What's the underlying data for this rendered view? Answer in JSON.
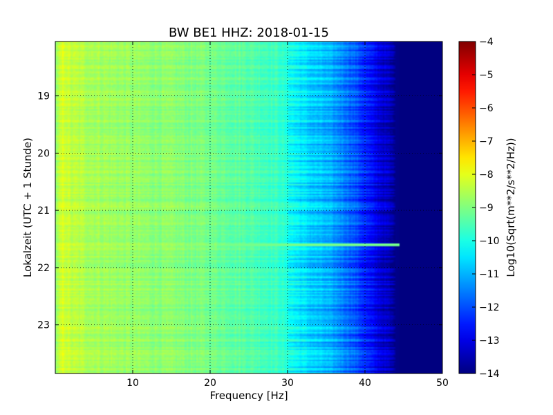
{
  "chart_data": {
    "type": "heatmap",
    "title": "BW BE1 HHZ: 2018-01-15",
    "xlabel": "Frequency [Hz]",
    "ylabel": "Lokalzeit (UTC + 1 Stunde)",
    "xlim": [
      0,
      50
    ],
    "ylim": [
      18.05,
      23.85
    ],
    "y_inverted": true,
    "x_ticks": [
      "10",
      "20",
      "30",
      "40",
      "50"
    ],
    "x_tick_values": [
      10,
      20,
      30,
      40,
      50
    ],
    "y_ticks": [
      "19",
      "20",
      "21",
      "22",
      "23"
    ],
    "y_tick_values": [
      19,
      20,
      21,
      22,
      23
    ],
    "grid": true,
    "colorscale": "jet",
    "colorbar": {
      "label": "Log10(Sqrt(m**2/s**2/Hz))",
      "range": [
        -14,
        -4
      ],
      "ticks": [
        "−4",
        "−5",
        "−6",
        "−7",
        "−8",
        "−9",
        "−10",
        "−11",
        "−12",
        "−13",
        "−14"
      ],
      "tick_values": [
        -4,
        -5,
        -6,
        -7,
        -8,
        -9,
        -10,
        -11,
        -12,
        -13,
        -14
      ]
    },
    "frequency_profile": {
      "frequency_hz": [
        0,
        1,
        2,
        5,
        10,
        15,
        20,
        25,
        29,
        31,
        33,
        35,
        37,
        39,
        41,
        43,
        44,
        45,
        50
      ],
      "log10_amplitude": [
        -8.9,
        -8.1,
        -8.4,
        -8.6,
        -8.8,
        -8.9,
        -9.1,
        -9.4,
        -9.7,
        -10.3,
        -10.7,
        -11.0,
        -11.4,
        -12.0,
        -12.8,
        -13.4,
        -13.9,
        -14.0,
        -14.0
      ]
    },
    "features": [
      {
        "time": 21.6,
        "frequency_range": [
          0,
          45
        ],
        "log10_amplitude": -9.1
      }
    ]
  }
}
